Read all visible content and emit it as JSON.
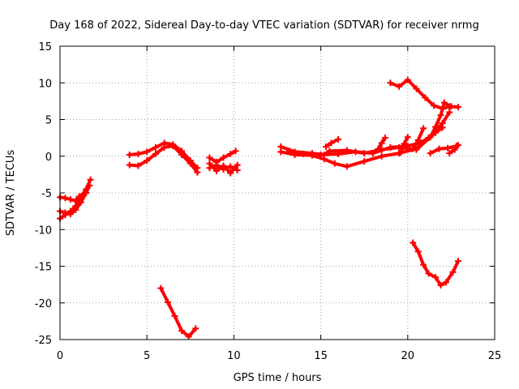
{
  "chart_data": {
    "type": "scatter",
    "title": "Day 168 of 2022, Sidereal Day-to-day VTEC variation (SDTVAR) for receiver nrmg",
    "xlabel": "GPS time / hours",
    "ylabel": "SDTVAR / TECUs",
    "xlim": [
      0,
      25
    ],
    "ylim": [
      -25,
      15
    ],
    "xticks": [
      0,
      5,
      10,
      15,
      20,
      25
    ],
    "yticks": [
      -25,
      -20,
      -15,
      -10,
      -5,
      0,
      5,
      10,
      15
    ],
    "xtick_labels": [
      "0",
      "5",
      "10",
      "15",
      "20",
      "25"
    ],
    "ytick_labels": [
      "-25",
      "-20",
      "-15",
      "-10",
      "-5",
      "0",
      "5",
      "10",
      "15"
    ],
    "grid": true,
    "color": "#ff0000",
    "series": [
      {
        "x": [
          0.0,
          0.3,
          0.6,
          0.9,
          1.1
        ],
        "y": [
          -5.6,
          -5.7,
          -5.9,
          -6.1,
          -5.5
        ]
      },
      {
        "x": [
          0.0,
          0.3,
          0.6,
          0.9,
          1.2,
          1.5,
          1.75
        ],
        "y": [
          -8.5,
          -8.0,
          -7.5,
          -6.8,
          -5.5,
          -4.5,
          -3.2
        ]
      },
      {
        "x": [
          0.0,
          0.3,
          0.6,
          0.9,
          1.2,
          1.5,
          1.7
        ],
        "y": [
          -7.5,
          -7.7,
          -7.9,
          -7.3,
          -6.3,
          -5.0,
          -4.0
        ]
      },
      {
        "x": [
          4.0,
          4.5,
          5.0,
          5.5,
          6.0,
          6.5,
          7.0,
          7.5,
          7.9
        ],
        "y": [
          0.2,
          0.3,
          0.6,
          1.2,
          1.8,
          1.6,
          0.7,
          -0.6,
          -1.6
        ]
      },
      {
        "x": [
          4.0,
          4.5,
          5.0,
          5.5,
          6.0,
          6.5,
          7.0,
          7.5,
          7.9
        ],
        "y": [
          -1.2,
          -1.3,
          -0.6,
          0.3,
          1.2,
          1.4,
          0.2,
          -1.0,
          -2.2
        ]
      },
      {
        "x": [
          5.8,
          6.2,
          6.6,
          7.0,
          7.4,
          7.8
        ],
        "y": [
          -18.0,
          -19.9,
          -21.8,
          -23.8,
          -24.6,
          -23.5
        ]
      },
      {
        "x": [
          8.6,
          9.0,
          9.4,
          9.8,
          10.1
        ],
        "y": [
          -0.2,
          -0.8,
          -0.2,
          0.3,
          0.7
        ]
      },
      {
        "x": [
          8.6,
          9.0,
          9.4,
          9.8,
          10.2
        ],
        "y": [
          -1.6,
          -1.2,
          -1.8,
          -1.4,
          -1.9
        ]
      },
      {
        "x": [
          8.6,
          9.0,
          9.4,
          9.8,
          10.2
        ],
        "y": [
          -1.0,
          -2.0,
          -1.3,
          -2.3,
          -1.2
        ]
      },
      {
        "x": [
          12.7,
          13.5,
          14.5,
          15.2,
          15.5,
          16.5,
          17.5,
          18.5,
          19.5,
          20.5,
          21.3,
          21.6,
          21.9,
          22.1,
          22.4,
          22.9
        ],
        "y": [
          1.3,
          0.6,
          0.4,
          0.2,
          0.7,
          0.8,
          0.4,
          0.9,
          1.2,
          0.9,
          2.6,
          4.0,
          5.6,
          7.3,
          6.8,
          6.7
        ]
      },
      {
        "x": [
          12.7,
          13.5,
          14.5,
          15.2,
          15.8,
          16.5,
          17.5,
          18.5,
          19.5,
          20.5,
          21.2,
          22.0,
          22.4
        ],
        "y": [
          0.6,
          0.2,
          0.1,
          -0.4,
          -1.0,
          -1.4,
          -0.7,
          0.0,
          0.4,
          1.0,
          2.5,
          4.5,
          6.0
        ]
      },
      {
        "x": [
          13.2,
          14.0,
          15.0,
          16.0,
          17.0,
          18.0,
          19.0,
          20.0,
          20.7,
          21.2,
          21.6,
          22.0
        ],
        "y": [
          0.7,
          0.3,
          0.2,
          0.3,
          0.6,
          0.4,
          1.2,
          1.4,
          1.8,
          2.5,
          3.2,
          3.9
        ]
      },
      {
        "x": [
          15.3,
          15.6,
          16.0
        ],
        "y": [
          1.3,
          1.8,
          2.3
        ]
      },
      {
        "x": [
          18.3,
          18.5,
          18.7
        ],
        "y": [
          1.0,
          1.8,
          2.5
        ]
      },
      {
        "x": [
          19.6,
          19.8,
          20.0
        ],
        "y": [
          0.5,
          1.7,
          2.6
        ]
      },
      {
        "x": [
          20.3,
          20.6,
          20.9
        ],
        "y": [
          1.0,
          2.2,
          3.8
        ]
      },
      {
        "x": [
          21.3,
          21.8,
          22.3,
          22.8
        ],
        "y": [
          0.4,
          1.0,
          1.1,
          1.4
        ]
      },
      {
        "x": [
          22.4,
          22.7,
          22.9
        ],
        "y": [
          0.4,
          0.9,
          1.5
        ]
      },
      {
        "x": [
          19.0,
          19.5,
          20.0,
          20.5,
          21.0,
          21.5,
          22.0,
          22.5
        ],
        "y": [
          10.0,
          9.5,
          10.4,
          9.2,
          8.0,
          6.9,
          6.5,
          6.8
        ]
      },
      {
        "x": [
          20.3,
          20.6,
          20.9,
          21.2,
          21.6,
          21.9,
          22.2,
          22.6,
          22.9
        ],
        "y": [
          -11.8,
          -13.0,
          -14.8,
          -16.0,
          -16.5,
          -17.6,
          -17.2,
          -15.8,
          -14.3
        ]
      }
    ]
  }
}
